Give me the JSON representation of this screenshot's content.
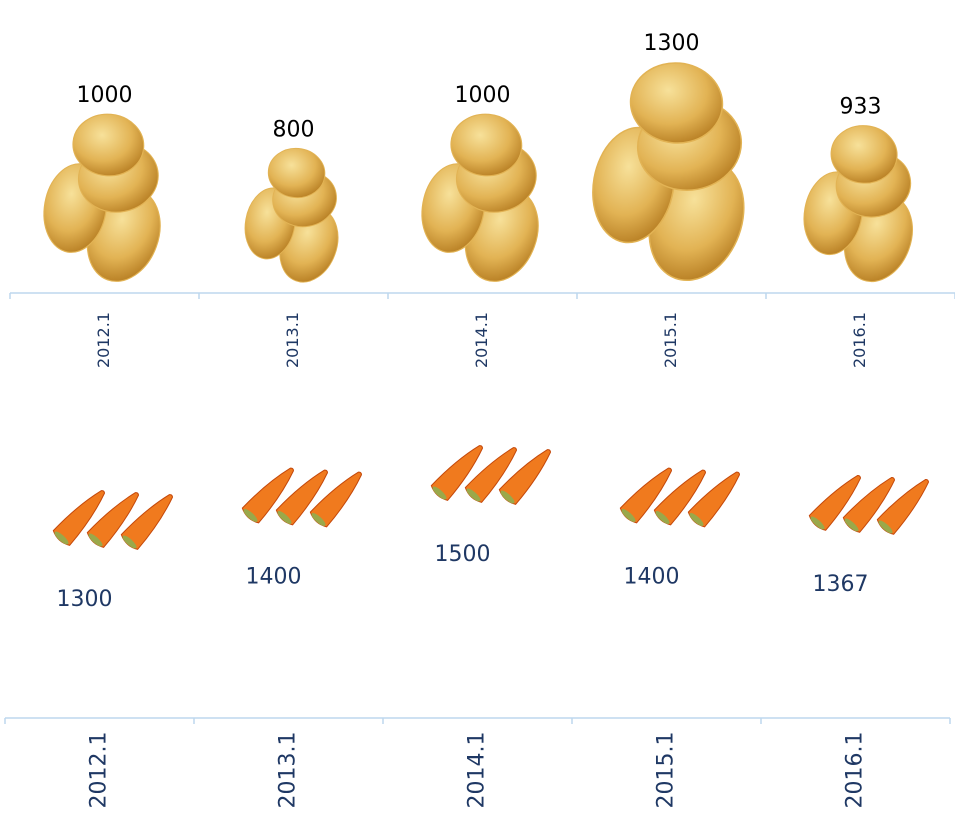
{
  "chart_data": [
    {
      "type": "pictograph",
      "categories": [
        "2012.1",
        "2013.1",
        "2014.1",
        "2015.1",
        "2016.1"
      ],
      "values": [
        1000,
        800,
        1000,
        1300,
        933
      ],
      "color": "#e2b354"
    },
    {
      "type": "dot",
      "categories": [
        "2012.1",
        "2013.1",
        "2014.1",
        "2015.1",
        "2016.1"
      ],
      "values": [
        1300,
        1400,
        1500,
        1400,
        1367
      ],
      "color": "#f07a1e"
    }
  ]
}
